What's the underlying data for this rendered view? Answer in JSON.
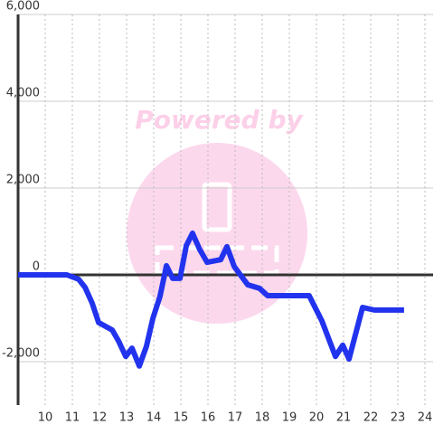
{
  "chart_data": {
    "type": "line",
    "watermark": "Powered by",
    "x": [
      9.0,
      10.8,
      11.23,
      11.47,
      11.73,
      11.97,
      12.47,
      12.7,
      12.97,
      13.2,
      13.47,
      13.73,
      13.97,
      14.23,
      14.47,
      14.7,
      14.97,
      15.2,
      15.43,
      15.7,
      15.97,
      16.47,
      16.7,
      16.97,
      17.47,
      17.9,
      18.2,
      19.73,
      20.2,
      20.7,
      20.97,
      21.2,
      21.7,
      22.13,
      23.23
    ],
    "series": [
      {
        "color": "#2233ee",
        "values": [
          0,
          0,
          -100,
          -290,
          -650,
          -1100,
          -1270,
          -1520,
          -1880,
          -1690,
          -2100,
          -1650,
          -1000,
          -500,
          210,
          -80,
          -80,
          670,
          960,
          580,
          290,
          350,
          650,
          190,
          -230,
          -310,
          -480,
          -480,
          -1060,
          -1880,
          -1620,
          -1940,
          -750,
          -810,
          -810
        ]
      }
    ],
    "xlim": [
      9,
      24.3
    ],
    "xticks": [
      10,
      11,
      12,
      13,
      14,
      15,
      16,
      17,
      18,
      19,
      20,
      21,
      22,
      23,
      24
    ],
    "ylim": [
      -3000,
      6000
    ],
    "yticks": [
      {
        "value": -2000,
        "label": "-2,000"
      },
      0,
      {
        "value": 2000,
        "label": "2,000"
      },
      {
        "value": 4000,
        "label": "4,000"
      },
      {
        "value": 6000,
        "label": "6,000"
      }
    ],
    "grid": true
  }
}
